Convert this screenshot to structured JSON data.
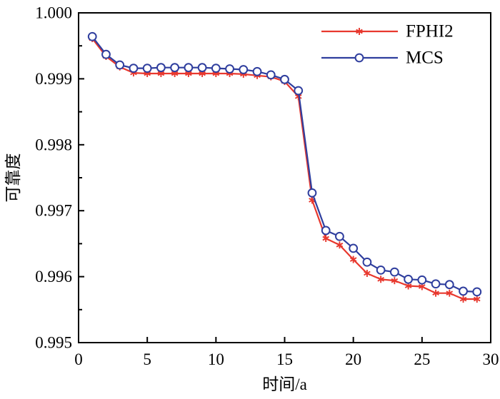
{
  "figure": {
    "background": "#ffffff",
    "axis_color": "#000000",
    "text_color": "#000000"
  },
  "chart_data": {
    "type": "line",
    "title": "",
    "xlabel": "时间/a",
    "ylabel": "可靠度",
    "xlim": [
      0,
      30
    ],
    "ylim": [
      0.995,
      1.0
    ],
    "grid": "off",
    "legend_position": "top-right-inside",
    "x_tick_values": [
      0,
      5,
      10,
      15,
      20,
      25,
      30
    ],
    "x_tick_labels": [
      "0",
      "5",
      "10",
      "15",
      "20",
      "25",
      "30"
    ],
    "y_tick_values": [
      0.995,
      0.996,
      0.997,
      0.998,
      0.999,
      1.0
    ],
    "y_tick_labels": [
      "0.995",
      "0.996",
      "0.997",
      "0.998",
      "0.999",
      "1.000"
    ],
    "y_minor_tick_values": [
      0.9955,
      0.9965,
      0.9975,
      0.9985,
      0.9995
    ],
    "x": [
      1,
      2,
      3,
      4,
      5,
      6,
      7,
      8,
      9,
      10,
      11,
      12,
      13,
      14,
      15,
      16,
      17,
      18,
      19,
      20,
      21,
      22,
      23,
      24,
      25,
      26,
      27,
      28,
      29
    ],
    "series": [
      {
        "name": "FPHI2",
        "color": "#e8382e",
        "marker": "star",
        "values": [
          0.99961,
          0.99934,
          0.99918,
          0.99909,
          0.99908,
          0.99908,
          0.99908,
          0.99908,
          0.99908,
          0.99908,
          0.99908,
          0.99907,
          0.99905,
          0.99903,
          0.99896,
          0.99873,
          0.99716,
          0.99658,
          0.99648,
          0.99626,
          0.99605,
          0.99596,
          0.99594,
          0.99586,
          0.99585,
          0.99575,
          0.99575,
          0.99566,
          0.99566
        ]
      },
      {
        "name": "MCS",
        "color": "#2f3e9e",
        "marker": "circle",
        "values": [
          0.99964,
          0.99937,
          0.99921,
          0.99916,
          0.99916,
          0.99917,
          0.99917,
          0.99917,
          0.99917,
          0.99916,
          0.99915,
          0.99914,
          0.99911,
          0.99906,
          0.99899,
          0.99882,
          0.99727,
          0.9967,
          0.99661,
          0.99643,
          0.99622,
          0.9961,
          0.99607,
          0.99596,
          0.99595,
          0.99589,
          0.99588,
          0.99578,
          0.99577
        ]
      }
    ]
  }
}
